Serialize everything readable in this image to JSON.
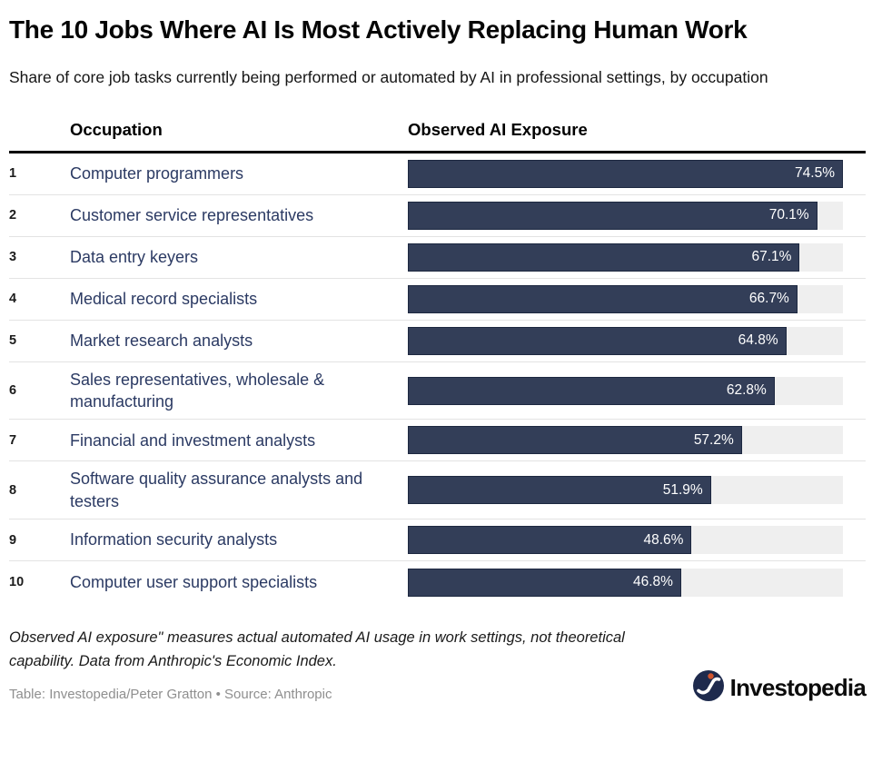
{
  "header": {
    "title": "The 10 Jobs Where AI Is Most Actively Replacing Human Work",
    "subtitle": "Share of core job tasks currently being performed or automated by AI in professional settings, by occupation"
  },
  "table": {
    "columns": {
      "occupation": "Occupation",
      "exposure": "Observed AI Exposure"
    },
    "max_value": 74.5,
    "rows": [
      {
        "rank": "1",
        "occupation": "Computer programmers",
        "value": 74.5,
        "label": "74.5%"
      },
      {
        "rank": "2",
        "occupation": "Customer service representatives",
        "value": 70.1,
        "label": "70.1%"
      },
      {
        "rank": "3",
        "occupation": "Data entry keyers",
        "value": 67.1,
        "label": "67.1%"
      },
      {
        "rank": "4",
        "occupation": "Medical record specialists",
        "value": 66.7,
        "label": "66.7%"
      },
      {
        "rank": "5",
        "occupation": "Market research analysts",
        "value": 64.8,
        "label": "64.8%"
      },
      {
        "rank": "6",
        "occupation": "Sales representatives, wholesale & manufacturing",
        "value": 62.8,
        "label": "62.8%"
      },
      {
        "rank": "7",
        "occupation": "Financial and investment analysts",
        "value": 57.2,
        "label": "57.2%"
      },
      {
        "rank": "8",
        "occupation": "Software quality assurance analysts and testers",
        "value": 51.9,
        "label": "51.9%"
      },
      {
        "rank": "9",
        "occupation": "Information security analysts",
        "value": 48.6,
        "label": "48.6%"
      },
      {
        "rank": "10",
        "occupation": "Computer user support specialists",
        "value": 46.8,
        "label": "46.8%"
      }
    ]
  },
  "footer": {
    "note": "Observed AI exposure\" measures actual automated AI usage in work settings, not theoretical capability. Data from Anthropic's Economic Index.",
    "credit": "Table: Investopedia/Peter Gratton • Source: Anthropic",
    "logo_text": "Investopedia"
  },
  "colors": {
    "bar_fill": "#333e58",
    "bar_border": "#1d2840",
    "bar_track": "#efefef",
    "occupation_text": "#2b3a63",
    "value_text": "#ffffff",
    "header_rule": "#000000",
    "row_separator": "#e3e3e3",
    "credit_text": "#8f8f8f",
    "logo_navy": "#1e2a4d",
    "logo_dot": "#d2552e"
  },
  "chart_data": {
    "type": "bar",
    "orientation": "horizontal",
    "title": "The 10 Jobs Where AI Is Most Actively Replacing Human Work",
    "subtitle": "Share of core job tasks currently being performed or automated by AI in professional settings, by occupation",
    "categories": [
      "Computer programmers",
      "Customer service representatives",
      "Data entry keyers",
      "Medical record specialists",
      "Market research analysts",
      "Sales representatives, wholesale & manufacturing",
      "Financial and investment analysts",
      "Software quality assurance analysts and testers",
      "Information security analysts",
      "Computer user support specialists"
    ],
    "values": [
      74.5,
      70.1,
      67.1,
      66.7,
      64.8,
      62.8,
      57.2,
      51.9,
      48.6,
      46.8
    ],
    "value_labels": [
      "74.5%",
      "70.1%",
      "67.1%",
      "66.7%",
      "64.8%",
      "62.8%",
      "57.2%",
      "51.9%",
      "48.6%",
      "46.8%"
    ],
    "xlabel": "Observed AI Exposure",
    "ylabel": "Occupation",
    "value_suffix": "%",
    "xlim": [
      0,
      74.5
    ],
    "grid": false,
    "legend": false,
    "bar_color": "#333e58",
    "track_color": "#efefef",
    "source": "Anthropic",
    "credit": "Table: Investopedia/Peter Gratton"
  }
}
